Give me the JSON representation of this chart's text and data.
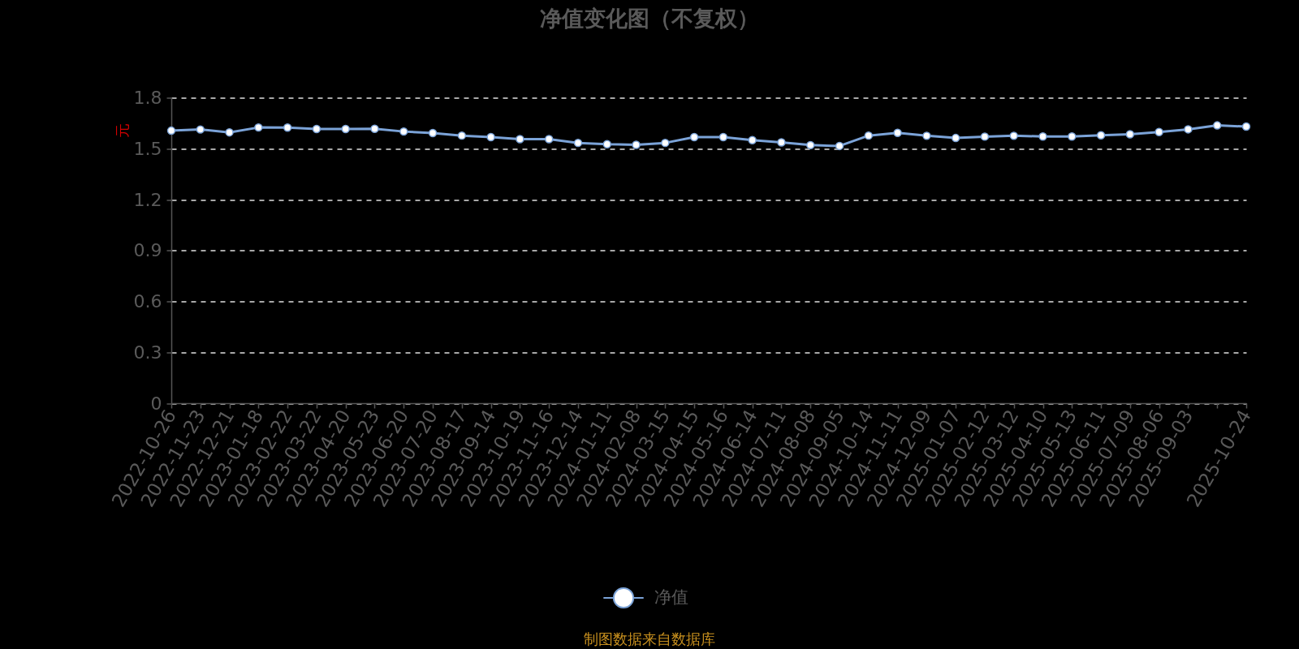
{
  "chart_data": {
    "type": "line",
    "title": "净值变化图（不复权）",
    "ylabel": "元",
    "categories": [
      "2022-10-26",
      "2022-11-23",
      "2022-12-21",
      "2023-01-18",
      "2023-02-22",
      "2023-03-22",
      "2023-04-20",
      "2023-05-23",
      "2023-06-20",
      "2023-07-20",
      "2023-08-17",
      "2023-09-14",
      "2023-10-19",
      "2023-11-16",
      "2023-12-14",
      "2024-01-11",
      "2024-02-08",
      "2024-03-15",
      "2024-04-15",
      "2024-05-16",
      "2024-06-14",
      "2024-07-11",
      "2024-08-08",
      "2024-09-05",
      "2024-10-14",
      "2024-11-11",
      "2024-12-09",
      "2025-01-07",
      "2025-02-12",
      "2025-03-12",
      "2025-04-10",
      "2025-05-13",
      "2025-06-11",
      "2025-07-09",
      "2025-08-06",
      "2025-09-03",
      null,
      "2025-10-24"
    ],
    "series": [
      {
        "name": "净值",
        "color": "#7ba3d8",
        "values": [
          1.606,
          1.613,
          1.596,
          1.625,
          1.624,
          1.616,
          1.616,
          1.617,
          1.601,
          1.592,
          1.577,
          1.568,
          1.556,
          1.556,
          1.534,
          1.526,
          1.523,
          1.534,
          1.568,
          1.568,
          1.55,
          1.537,
          1.521,
          1.516,
          1.577,
          1.593,
          1.576,
          1.563,
          1.571,
          1.576,
          1.572,
          1.572,
          1.579,
          1.585,
          1.598,
          1.614,
          1.637,
          1.63
        ]
      }
    ],
    "ylim": [
      0,
      1.8
    ],
    "yticks": [
      0,
      0.3,
      0.6,
      0.9,
      1.2,
      1.5,
      1.8
    ],
    "grid": "y",
    "legend": "bottom",
    "marker": "circle",
    "annotations": [
      "制图数据来自数据库"
    ]
  }
}
